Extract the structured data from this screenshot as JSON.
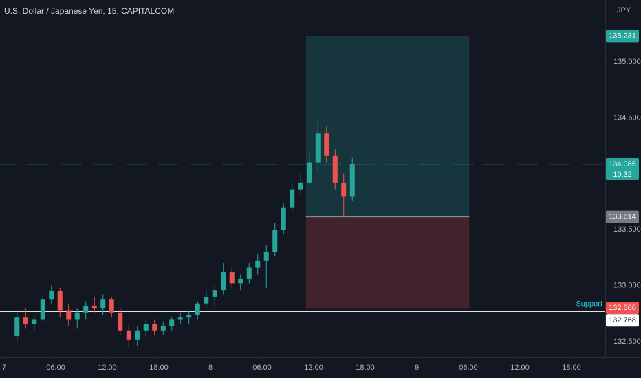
{
  "chart_data": {
    "type": "candlestick",
    "title": "U.S. Dollar / Japanese Yen, 15, CAPITALCOM",
    "currency": "JPY",
    "up_color": "#26a69a",
    "down_color": "#ef5350",
    "x": [
      1.5,
      2.5,
      3.5,
      4.5,
      5.5,
      6.5,
      7.5,
      8.5,
      9.5,
      10.5,
      11.5,
      12.5,
      13.5,
      14.5,
      15.5,
      16.5,
      17.5,
      18.5,
      19.5,
      20.5,
      21.5,
      22.5,
      23.5,
      24.5,
      25.5,
      26.5,
      27.5,
      28.5,
      29.5,
      30.5,
      31.5,
      32.5,
      33.5,
      34.5,
      35.5,
      36.5,
      37.5,
      38.5,
      39.5,
      40.5
    ],
    "open": [
      132.55,
      132.72,
      132.66,
      132.7,
      132.88,
      132.95,
      132.78,
      132.7,
      132.76,
      132.82,
      132.8,
      132.88,
      132.76,
      132.6,
      132.52,
      132.6,
      132.66,
      132.6,
      132.64,
      132.7,
      132.72,
      132.74,
      132.84,
      132.9,
      132.96,
      133.12,
      133.02,
      133.06,
      133.16,
      133.22,
      133.3,
      133.5,
      133.7,
      133.86,
      133.92,
      134.1,
      134.36,
      134.16,
      133.92,
      133.8
    ],
    "high": [
      132.78,
      132.8,
      132.74,
      132.92,
      133.0,
      132.98,
      132.84,
      132.8,
      132.86,
      132.9,
      132.92,
      132.9,
      132.8,
      132.66,
      132.64,
      132.7,
      132.7,
      132.68,
      132.72,
      132.76,
      132.78,
      132.86,
      132.96,
      133.0,
      133.2,
      133.16,
      133.1,
      133.2,
      133.28,
      133.36,
      133.56,
      133.74,
      133.92,
      134.0,
      134.18,
      134.47,
      134.42,
      134.22,
      134.0,
      134.14
    ],
    "low": [
      132.5,
      132.62,
      132.6,
      132.68,
      132.84,
      132.72,
      132.64,
      132.62,
      132.7,
      132.76,
      132.74,
      132.72,
      132.56,
      132.44,
      132.46,
      132.54,
      132.56,
      132.56,
      132.6,
      132.66,
      132.66,
      132.7,
      132.8,
      132.82,
      132.92,
      132.98,
      132.96,
      133.02,
      133.1,
      132.98,
      133.26,
      133.46,
      133.66,
      133.82,
      133.9,
      134.02,
      134.1,
      133.86,
      133.614,
      133.76
    ],
    "close": [
      132.72,
      132.66,
      132.7,
      132.88,
      132.95,
      132.78,
      132.7,
      132.76,
      132.82,
      132.8,
      132.88,
      132.76,
      132.6,
      132.52,
      132.6,
      132.66,
      132.6,
      132.64,
      132.7,
      132.72,
      132.74,
      132.84,
      132.9,
      132.96,
      133.12,
      133.02,
      133.06,
      133.16,
      133.22,
      133.3,
      133.5,
      133.7,
      133.86,
      133.92,
      134.1,
      134.36,
      134.16,
      133.92,
      133.8,
      134.085
    ],
    "xlim": [
      -0.48,
      69.92
    ],
    "xticks": [
      {
        "value": 0,
        "label": "7"
      },
      {
        "value": 6,
        "label": "06:00"
      },
      {
        "value": 12,
        "label": "12:00"
      },
      {
        "value": 18,
        "label": "18:00"
      },
      {
        "value": 24,
        "label": "8"
      },
      {
        "value": 30,
        "label": "06:00"
      },
      {
        "value": 36,
        "label": "12:00"
      },
      {
        "value": 42,
        "label": "18:00"
      },
      {
        "value": 48,
        "label": "9"
      },
      {
        "value": 54,
        "label": "06:00"
      },
      {
        "value": 60,
        "label": "12:00"
      },
      {
        "value": 66,
        "label": "18:00"
      }
    ],
    "ylim": [
      132.359,
      135.553
    ],
    "yticks": [
      {
        "value": 135,
        "label": "135.000"
      },
      {
        "value": 134.5,
        "label": "134.500"
      },
      {
        "value": 133.5,
        "label": "133.500"
      },
      {
        "value": 133,
        "label": "133.000"
      },
      {
        "value": 132.5,
        "label": "132.500"
      }
    ],
    "position": {
      "start_x": 35.1,
      "end_x": 54.1,
      "target": 135.231,
      "entry": 133.614,
      "stop": {
        "value": 132.8,
        "label": "132.800"
      }
    },
    "last_price": {
      "value": 134.085,
      "countdown": "10:32"
    },
    "support": {
      "label": "Support",
      "value": 132.768
    }
  }
}
